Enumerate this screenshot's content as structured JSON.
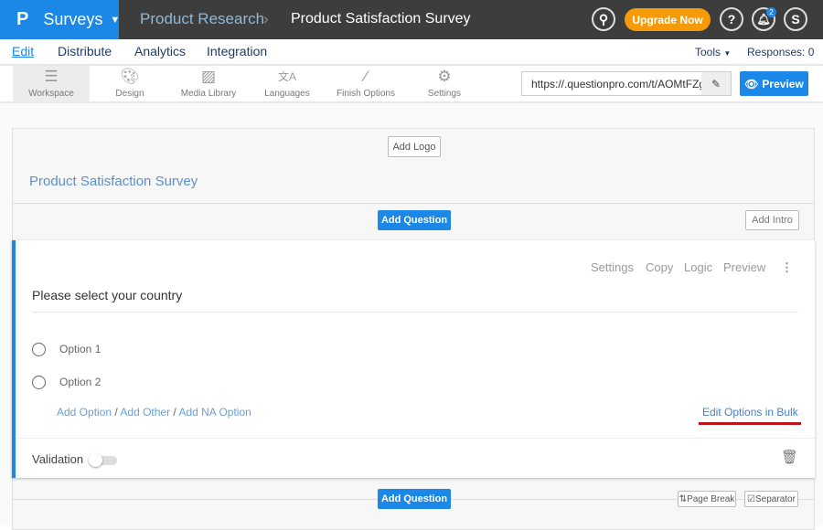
{
  "header": {
    "brand": "Surveys",
    "logo": "P",
    "breadcrumb": [
      "Product Research",
      "Product Satisfaction Survey"
    ],
    "upgrade": "Upgrade Now",
    "notification_count": "2",
    "avatar": "S",
    "help": "?"
  },
  "nav": {
    "tabs": [
      "Edit",
      "Distribute",
      "Analytics",
      "Integration"
    ],
    "active": "Edit",
    "tools": "Tools",
    "responses": "Responses: 0"
  },
  "toolbar": {
    "items": [
      {
        "label": "Workspace",
        "icon": "workspace-icon"
      },
      {
        "label": "Design",
        "icon": "palette-icon"
      },
      {
        "label": "Media Library",
        "icon": "image-icon"
      },
      {
        "label": "Languages",
        "icon": "language-icon"
      },
      {
        "label": "Finish Options",
        "icon": "magic-wand-icon"
      },
      {
        "label": "Settings",
        "icon": "gear-icon"
      }
    ],
    "url": "https://.questionpro.com/t/AOMtFZgB",
    "preview": "Preview"
  },
  "survey": {
    "add_logo": "Add Logo",
    "title": "Product Satisfaction Survey",
    "add_question": "Add Question",
    "add_intro": "Add Intro"
  },
  "question": {
    "actions": [
      "Settings",
      "Copy",
      "Logic",
      "Preview"
    ],
    "text": "Please select your country",
    "options": [
      "Option 1",
      "Option 2"
    ],
    "add_option": "Add Option",
    "add_other": "Add Other",
    "add_na": "Add NA Option",
    "edit_bulk": "Edit Options in Bulk",
    "validation": "Validation",
    "validation_on": false
  },
  "footer": {
    "add_question": "Add Question",
    "page_break": "Page Break",
    "separator": "Separator"
  },
  "colors": {
    "brand": "#1b87e6",
    "upgrade": "#f59b0a",
    "highlight_underline": "#c0121c"
  }
}
